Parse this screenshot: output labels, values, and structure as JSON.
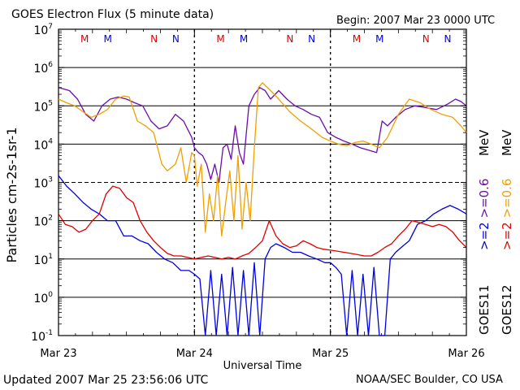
{
  "header": {
    "title": "GOES Electron Flux (5 minute data)",
    "begin": "Begin: 2007 Mar 23 0000 UTC"
  },
  "footer": {
    "updated": "Updated 2007 Mar 25 23:56:06 UTC",
    "credit": "NOAA/SEC Boulder, CO USA"
  },
  "chart_data": {
    "type": "line",
    "title": "GOES Electron Flux (5 minute data)",
    "xlabel": "Universal Time",
    "ylabel": "Particles cm-2s-1sr-1",
    "x_unit": "days since 2007 Mar 23 0000 UTC",
    "xlim": [
      0,
      3
    ],
    "ylim": [
      0.1,
      10000000
    ],
    "y_scale": "log",
    "grid": true,
    "x_ticks": [
      {
        "x": 0,
        "label": "Mar 23"
      },
      {
        "x": 1,
        "label": "Mar 24"
      },
      {
        "x": 2,
        "label": "Mar 25"
      },
      {
        "x": 3,
        "label": "Mar 26"
      }
    ],
    "y_ticks": [
      {
        "v": 0.1,
        "base": "10",
        "exp": "-1"
      },
      {
        "v": 1,
        "base": "10",
        "exp": "0"
      },
      {
        "v": 10,
        "base": "10",
        "exp": "1"
      },
      {
        "v": 100,
        "base": "10",
        "exp": "2"
      },
      {
        "v": 1000,
        "base": "10",
        "exp": "3"
      },
      {
        "v": 10000,
        "base": "10",
        "exp": "4"
      },
      {
        "v": 100000,
        "base": "10",
        "exp": "5"
      },
      {
        "v": 1000000,
        "base": "10",
        "exp": "6"
      },
      {
        "v": 10000000,
        "base": "10",
        "exp": "7"
      }
    ],
    "markers": [
      {
        "x": 0.33,
        "label": "M",
        "color": "#e00000"
      },
      {
        "x": 0.5,
        "label": "M",
        "color": "#0000e0"
      },
      {
        "x": 0.84,
        "label": "N",
        "color": "#e00000"
      },
      {
        "x": 1.0,
        "label": "N",
        "color": "#0000e0"
      },
      {
        "x": 1.33,
        "label": "M",
        "color": "#e00000"
      },
      {
        "x": 1.5,
        "label": "M",
        "color": "#0000e0"
      },
      {
        "x": 1.84,
        "label": "N",
        "color": "#e00000"
      },
      {
        "x": 2.0,
        "label": "N",
        "color": "#0000e0"
      },
      {
        "x": 2.33,
        "label": "M",
        "color": "#e00000"
      },
      {
        "x": 2.5,
        "label": "M",
        "color": "#0000e0"
      },
      {
        "x": 2.84,
        "label": "N",
        "color": "#e00000"
      },
      {
        "x": 3.0,
        "label": "N",
        "color": "#0000e0"
      }
    ],
    "day_boundaries": [
      1,
      2
    ],
    "legend": {
      "goes11": {
        "label": "GOES11",
        "e2": ">=2",
        "e06": ">=0.6",
        "colors": [
          "#0000e0",
          "#6a0dad"
        ]
      },
      "goes12": {
        "label": "GOES12",
        "e2": ">=2",
        "e06": ">=0.6",
        "colors": [
          "#e00000",
          "#f0a000"
        ]
      },
      "unit": "MeV"
    },
    "series": [
      {
        "color": "#6a0dad",
        "x": [
          0,
          0.08,
          0.14,
          0.2,
          0.26,
          0.32,
          0.38,
          0.44,
          0.5,
          0.56,
          0.62,
          0.68,
          0.74,
          0.8,
          0.86,
          0.92,
          0.98,
          1.0,
          1.03,
          1.06,
          1.09,
          1.12,
          1.15,
          1.18,
          1.21,
          1.24,
          1.27,
          1.3,
          1.33,
          1.36,
          1.4,
          1.44,
          1.48,
          1.52,
          1.56,
          1.62,
          1.68,
          1.74,
          1.8,
          1.86,
          1.92,
          1.98,
          2.04,
          2.1,
          2.16,
          2.22,
          2.28,
          2.34,
          2.38,
          2.42,
          2.48,
          2.55,
          2.62,
          2.7,
          2.78,
          2.86,
          2.92,
          2.96,
          3.0
        ],
        "y": [
          300000,
          250000,
          150000,
          60000,
          40000,
          100000,
          150000,
          170000,
          150000,
          120000,
          100000,
          40000,
          25000,
          30000,
          60000,
          40000,
          15000,
          8000,
          6000,
          5000,
          3000,
          1200,
          3000,
          1000,
          8000,
          10000,
          4000,
          30000,
          6000,
          3000,
          100000,
          200000,
          300000,
          250000,
          150000,
          250000,
          150000,
          100000,
          80000,
          60000,
          50000,
          20000,
          15000,
          12000,
          10000,
          8000,
          7000,
          6000,
          40000,
          30000,
          50000,
          80000,
          100000,
          90000,
          80000,
          110000,
          150000,
          130000,
          100000
        ]
      },
      {
        "color": "#f0a000",
        "x": [
          0,
          0.06,
          0.12,
          0.18,
          0.24,
          0.3,
          0.36,
          0.42,
          0.48,
          0.52,
          0.58,
          0.64,
          0.7,
          0.76,
          0.8,
          0.86,
          0.9,
          0.94,
          0.98,
          1.0,
          1.02,
          1.05,
          1.08,
          1.11,
          1.14,
          1.17,
          1.2,
          1.23,
          1.26,
          1.29,
          1.32,
          1.35,
          1.38,
          1.41,
          1.44,
          1.47,
          1.5,
          1.56,
          1.62,
          1.7,
          1.78,
          1.86,
          1.94,
          2.0,
          2.06,
          2.12,
          2.18,
          2.24,
          2.3,
          2.36,
          2.42,
          2.5,
          2.58,
          2.66,
          2.74,
          2.82,
          2.9,
          2.96,
          3.0
        ],
        "y": [
          150000,
          120000,
          100000,
          70000,
          50000,
          60000,
          80000,
          150000,
          180000,
          170000,
          40000,
          30000,
          20000,
          3000,
          2000,
          3000,
          8000,
          1000,
          6000,
          5000,
          800,
          3000,
          50,
          500,
          100,
          1500,
          40,
          300,
          2000,
          100,
          5000,
          60,
          1000,
          100,
          8000,
          300000,
          400000,
          250000,
          150000,
          70000,
          40000,
          25000,
          15000,
          12000,
          10000,
          9000,
          11000,
          12000,
          10000,
          8000,
          15000,
          60000,
          150000,
          120000,
          80000,
          60000,
          50000,
          30000,
          20000
        ]
      },
      {
        "color": "#0000e0",
        "x": [
          0,
          0.06,
          0.12,
          0.18,
          0.24,
          0.3,
          0.36,
          0.42,
          0.48,
          0.54,
          0.6,
          0.66,
          0.72,
          0.78,
          0.84,
          0.9,
          0.96,
          1.0,
          1.04,
          1.08,
          1.12,
          1.16,
          1.2,
          1.24,
          1.28,
          1.32,
          1.36,
          1.4,
          1.44,
          1.48,
          1.52,
          1.56,
          1.6,
          1.66,
          1.72,
          1.78,
          1.84,
          1.9,
          1.96,
          2.0,
          2.04,
          2.08,
          2.12,
          2.16,
          2.2,
          2.24,
          2.28,
          2.32,
          2.36,
          2.4,
          2.44,
          2.48,
          2.52,
          2.58,
          2.64,
          2.7,
          2.76,
          2.82,
          2.88,
          2.94,
          3.0
        ],
        "y": [
          1500,
          800,
          500,
          300,
          200,
          150,
          100,
          100,
          40,
          40,
          30,
          25,
          15,
          10,
          8,
          5,
          5,
          4,
          3,
          0.1,
          5,
          0.1,
          4,
          0.1,
          6,
          0.1,
          5,
          0.1,
          8,
          0.1,
          10,
          20,
          25,
          20,
          15,
          15,
          12,
          10,
          8,
          8,
          6,
          4,
          0.1,
          5,
          0.1,
          4,
          0.1,
          6,
          0.1,
          0.1,
          10,
          15,
          20,
          30,
          80,
          100,
          150,
          200,
          250,
          200,
          150
        ]
      },
      {
        "color": "#e00000",
        "x": [
          0,
          0.05,
          0.1,
          0.15,
          0.2,
          0.25,
          0.3,
          0.35,
          0.4,
          0.45,
          0.5,
          0.55,
          0.6,
          0.65,
          0.7,
          0.75,
          0.8,
          0.85,
          0.9,
          0.95,
          1.0,
          1.05,
          1.1,
          1.15,
          1.2,
          1.25,
          1.3,
          1.35,
          1.4,
          1.45,
          1.5,
          1.55,
          1.6,
          1.65,
          1.7,
          1.75,
          1.8,
          1.85,
          1.9,
          1.95,
          2.0,
          2.05,
          2.1,
          2.15,
          2.2,
          2.25,
          2.3,
          2.35,
          2.4,
          2.45,
          2.5,
          2.55,
          2.6,
          2.65,
          2.7,
          2.75,
          2.8,
          2.85,
          2.9,
          2.95,
          3.0
        ],
        "y": [
          150,
          80,
          70,
          50,
          60,
          100,
          150,
          500,
          800,
          700,
          400,
          300,
          100,
          50,
          30,
          20,
          14,
          12,
          12,
          11,
          10,
          11,
          12,
          11,
          10,
          11,
          10,
          12,
          14,
          20,
          30,
          100,
          40,
          25,
          20,
          22,
          30,
          25,
          20,
          18,
          17,
          16,
          15,
          14,
          13,
          12,
          12,
          15,
          20,
          25,
          40,
          60,
          100,
          90,
          80,
          70,
          80,
          70,
          50,
          30,
          20
        ]
      }
    ]
  }
}
